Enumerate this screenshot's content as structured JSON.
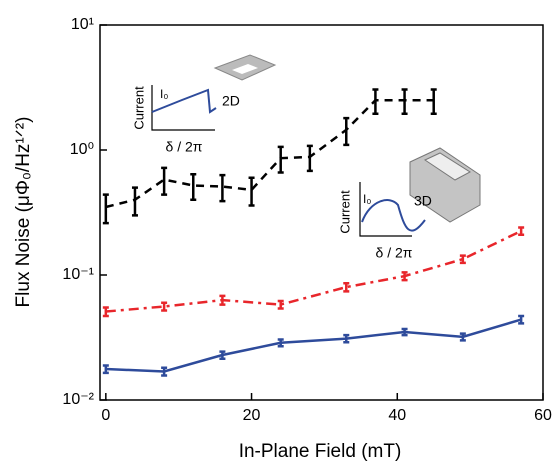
{
  "chart_data": {
    "type": "line",
    "x_label": "In-Plane Field (mT)",
    "y_label": "Flux Noise (μΦ₀/Hz¹ᐟ²)",
    "log_y": true,
    "xlim": [
      -0.8,
      60
    ],
    "ylim": [
      0.01,
      10
    ],
    "xticks": [
      0,
      20,
      40,
      60
    ],
    "yticks": [
      {
        "value": 0.01,
        "label": "10⁻²"
      },
      {
        "value": 0.1,
        "label": "10⁻¹"
      },
      {
        "value": 1,
        "label": "10⁰"
      },
      {
        "value": 10,
        "label": "10¹"
      }
    ],
    "series": [
      {
        "color": "#000000",
        "dash": "8,6",
        "x": [
          0,
          4,
          8,
          12,
          16,
          20,
          24,
          28,
          33,
          37,
          41,
          45
        ],
        "values": [
          0.35,
          0.4,
          0.58,
          0.52,
          0.51,
          0.48,
          0.86,
          0.88,
          1.45,
          2.5,
          2.5,
          2.5
        ],
        "errors": [
          0.09,
          0.1,
          0.14,
          0.12,
          0.12,
          0.12,
          0.2,
          0.2,
          0.35,
          0.55,
          0.55,
          0.55
        ]
      },
      {
        "color": "#e8262b",
        "dash": "10,5,3,5",
        "x": [
          0,
          8,
          16,
          24,
          33,
          41,
          49,
          57
        ],
        "values": [
          0.051,
          0.056,
          0.063,
          0.058,
          0.08,
          0.098,
          0.134,
          0.225
        ],
        "errors": [
          0.004,
          0.004,
          0.005,
          0.004,
          0.006,
          0.007,
          0.009,
          0.015
        ]
      },
      {
        "color": "#2e4b9b",
        "dash": "",
        "x": [
          0,
          8,
          16,
          24,
          33,
          41,
          49,
          57
        ],
        "values": [
          0.0177,
          0.0169,
          0.0229,
          0.0287,
          0.031,
          0.035,
          0.032,
          0.044
        ],
        "errors": [
          0.0012,
          0.0012,
          0.0015,
          0.0018,
          0.002,
          0.002,
          0.002,
          0.003
        ]
      }
    ],
    "annotations": [
      "Current",
      "I₀",
      "δ / 2π",
      "2D",
      "Current",
      "I₀",
      "δ / 2π",
      "3D"
    ]
  }
}
